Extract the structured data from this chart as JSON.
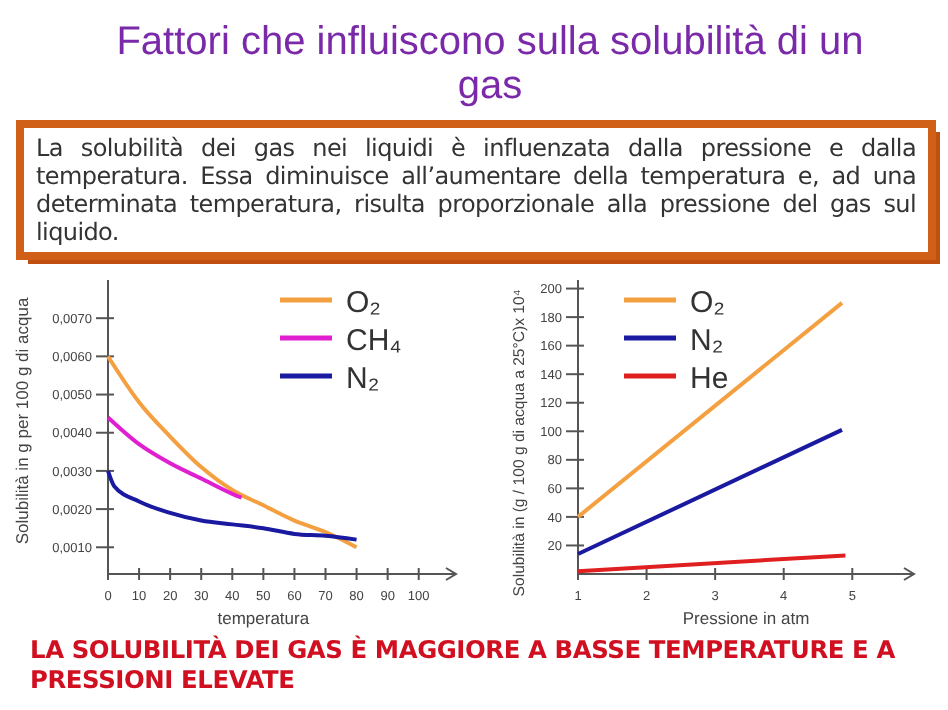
{
  "chart_data": [
    {
      "type": "line",
      "title": "Fattori che influiscono sulla solubilità di un gas",
      "xlabel": "temperatura",
      "ylabel": "Solubilità in g per 100 g di acqua",
      "annotations": [
        "La solubilità dei gas nei liquidi è influenzata dalla pressione e dalla temperatura. Essa diminuisce all’aumentare della temperatura e, ad una determinata temperatura, risulta proporzionale alla pressione del gas sul liquido.",
        "LA SOLUBILITÀ DEI GAS È MAGGIORE A BASSE TEMPERATURE E A PRESSIONI ELEVATE"
      ],
      "xlim": [
        0,
        112
      ],
      "xticks": [
        0,
        10,
        20,
        30,
        40,
        50,
        60,
        70,
        80,
        90,
        100
      ],
      "ylim": [
        0.0003,
        0.008
      ],
      "yticks": [
        {
          "value": 0.001,
          "label": "0,0010"
        },
        {
          "value": 0.002,
          "label": "0,0020"
        },
        {
          "value": 0.003,
          "label": "0,0030"
        },
        {
          "value": 0.004,
          "label": "0,0040"
        },
        {
          "value": 0.005,
          "label": "0,0050"
        },
        {
          "value": 0.006,
          "label": "0,0060"
        },
        {
          "value": 0.007,
          "label": "0,0070"
        }
      ],
      "legend": "top right",
      "grid": false,
      "series": [
        {
          "name": "O₂",
          "color": "#f4a040",
          "x": [
            0,
            10,
            20,
            30,
            40,
            50,
            60,
            70,
            80
          ],
          "values": [
            0.006,
            0.0048,
            0.0039,
            0.0031,
            0.0025,
            0.0021,
            0.0017,
            0.0014,
            0.001
          ]
        },
        {
          "name": "CH₄",
          "color": "#e020d0",
          "x": [
            0,
            10,
            20,
            30,
            40,
            43
          ],
          "values": [
            0.0044,
            0.0037,
            0.0032,
            0.0028,
            0.0024,
            0.0023
          ]
        },
        {
          "name": "N₂",
          "color": "#1a1aa0",
          "x": [
            0,
            2,
            10,
            20,
            30,
            40,
            50,
            60,
            70,
            80
          ],
          "values": [
            0.003,
            0.0026,
            0.0022,
            0.0019,
            0.0017,
            0.0016,
            0.0015,
            0.00135,
            0.0013,
            0.0012
          ]
        }
      ]
    },
    {
      "type": "line",
      "xlabel": "Pressione in atm",
      "ylabel": "Solubilità in (g / 100 g di acqua a 25°C)x 10⁴",
      "xlim": [
        1,
        5.9
      ],
      "xticks": [
        1,
        2,
        3,
        4,
        5
      ],
      "ylim": [
        0,
        206
      ],
      "yticks": [
        20,
        40,
        60,
        80,
        100,
        120,
        140,
        160,
        180,
        200
      ],
      "legend": "top left",
      "grid": false,
      "series": [
        {
          "name": "O₂",
          "color": "#f4a040",
          "x": [
            1,
            4.85
          ],
          "values": [
            40,
            190
          ]
        },
        {
          "name": "N₂",
          "color": "#1a1aa0",
          "x": [
            1,
            4.85
          ],
          "values": [
            14,
            101
          ]
        },
        {
          "name": "He",
          "color": "#e02020",
          "x": [
            1,
            4.9
          ],
          "values": [
            2,
            13
          ]
        }
      ]
    }
  ]
}
